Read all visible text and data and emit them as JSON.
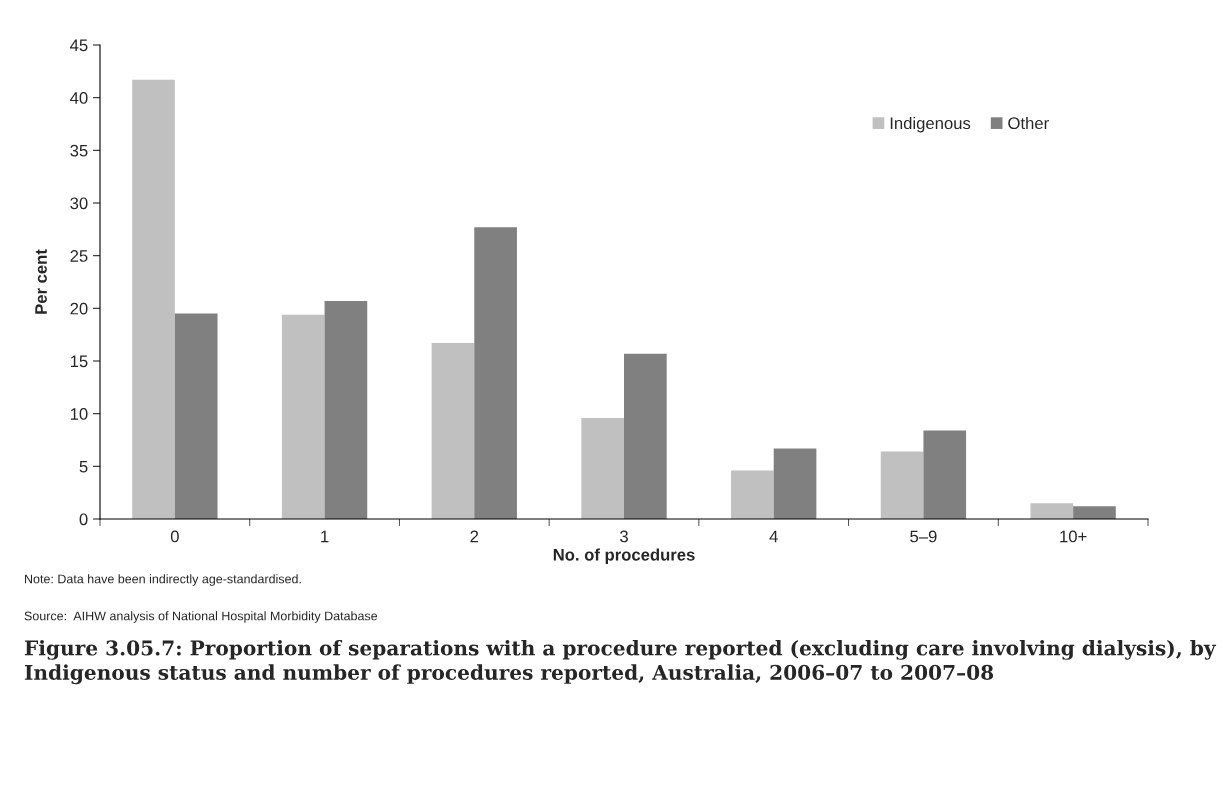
{
  "chart_data": {
    "type": "bar",
    "title": "Figure 3.05.7: Proportion of separations with a procedure reported (excluding care involving dialysis), by Indigenous status and number of procedures reported, Australia, 2006–07 to 2007–08",
    "xlabel": "No. of procedures",
    "ylabel": "Per cent",
    "categories": [
      "0",
      "1",
      "2",
      "3",
      "4",
      "5–9",
      "10+"
    ],
    "series": [
      {
        "name": "Indigenous",
        "color": "#c0c0c0",
        "values": [
          41.7,
          19.4,
          16.7,
          9.6,
          4.6,
          6.4,
          1.5
        ]
      },
      {
        "name": "Other",
        "color": "#808080",
        "values": [
          19.5,
          20.7,
          27.7,
          15.7,
          6.7,
          8.4,
          1.2
        ]
      }
    ],
    "ylim": [
      0,
      45
    ],
    "yticks": [
      0,
      5,
      10,
      15,
      20,
      25,
      30,
      35,
      40,
      45
    ],
    "grid": false,
    "legend": "top right",
    "annotations": [
      "Note: Data have been indirectly age-standardised.",
      "Source:  AIHW analysis of National Hospital Morbidity Database"
    ]
  }
}
